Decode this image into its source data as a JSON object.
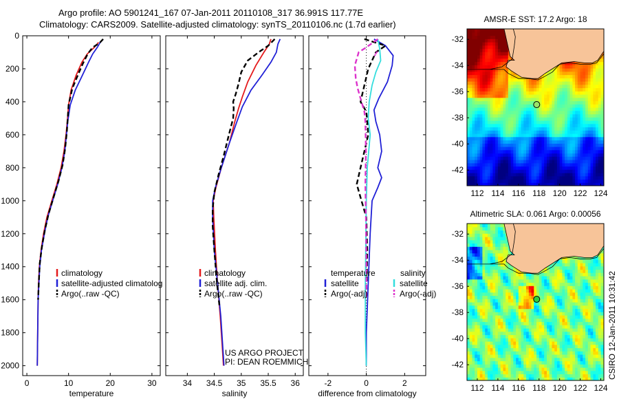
{
  "header": {
    "line1": "Argo profile: AO 5901241_167 07-Jan-2011 20110108_317 36.991S 117.77E",
    "line2": "Climatology: CARS2009. Satellite-adjusted climatology: synTS_20110106.nc (1.7d earlier)"
  },
  "credit": "CSIRO 12-Jan-2011 10:31:42",
  "colors": {
    "red": "#e41a1c",
    "blue": "#1f1fd6",
    "black": "#000000",
    "cyan": "#33dddd",
    "magenta": "#dd33cc",
    "land": "#f7c499"
  },
  "chart_data": [
    {
      "type": "line",
      "id": "temperature",
      "xlabel": "temperature",
      "ylabel": "",
      "xlim": [
        -1,
        32
      ],
      "ylim": [
        2060,
        0
      ],
      "xticks": [
        0,
        10,
        20,
        30
      ],
      "yticks": [
        0,
        200,
        400,
        600,
        800,
        1000,
        1200,
        1400,
        1600,
        1800,
        2000
      ],
      "legend": {
        "placement": "lower-right",
        "entries": [
          "climatology",
          "satellite-adjusted climatolog",
          "Argo(..raw -QC)"
        ]
      },
      "series": [
        {
          "name": "climatology",
          "color": "red",
          "dash": false,
          "points": [
            [
              17.2,
              40
            ],
            [
              16.2,
              70
            ],
            [
              14.5,
              110
            ],
            [
              13.2,
              160
            ],
            [
              11.8,
              240
            ],
            [
              10.6,
              330
            ],
            [
              10,
              420
            ],
            [
              9.7,
              520
            ],
            [
              9.4,
              600
            ],
            [
              8.9,
              700
            ],
            [
              8.2,
              800
            ],
            [
              7.2,
              900
            ],
            [
              6,
              1000
            ],
            [
              4.8,
              1100
            ],
            [
              4,
              1200
            ],
            [
              3.4,
              1300
            ],
            [
              3,
              1400
            ],
            [
              2.8,
              1500
            ],
            [
              2.7,
              1600
            ],
            [
              2.6,
              1800
            ],
            [
              2.5,
              2000
            ]
          ]
        },
        {
          "name": "satellite-adjusted climatolog",
          "color": "blue",
          "dash": false,
          "points": [
            [
              17.6,
              40
            ],
            [
              16.9,
              70
            ],
            [
              15.8,
              110
            ],
            [
              14.8,
              160
            ],
            [
              13.3,
              240
            ],
            [
              11.6,
              330
            ],
            [
              10.4,
              420
            ],
            [
              9.8,
              520
            ],
            [
              9.5,
              600
            ],
            [
              9.1,
              700
            ],
            [
              8.4,
              800
            ],
            [
              7.4,
              900
            ],
            [
              6.2,
              1000
            ],
            [
              5,
              1100
            ],
            [
              4.2,
              1200
            ],
            [
              3.5,
              1300
            ],
            [
              3.1,
              1400
            ],
            [
              2.9,
              1500
            ],
            [
              2.7,
              1600
            ],
            [
              2.6,
              1800
            ],
            [
              2.5,
              2000
            ]
          ]
        },
        {
          "name": "Argo(..raw -QC)",
          "color": "black",
          "dash": true,
          "points": [
            [
              18.3,
              20
            ],
            [
              17.4,
              45
            ],
            [
              15.8,
              70
            ],
            [
              14.6,
              110
            ],
            [
              13.4,
              170
            ],
            [
              12.2,
              240
            ],
            [
              10.9,
              320
            ],
            [
              10,
              420
            ],
            [
              9.8,
              500
            ],
            [
              9.6,
              580
            ],
            [
              9.2,
              680
            ],
            [
              8.6,
              780
            ],
            [
              7.6,
              880
            ],
            [
              6.4,
              980
            ],
            [
              5.2,
              1080
            ],
            [
              4.3,
              1180
            ],
            [
              3.6,
              1280
            ],
            [
              3.1,
              1380
            ],
            [
              2.9,
              1480
            ],
            [
              2.7,
              1600
            ]
          ]
        }
      ]
    },
    {
      "type": "line",
      "id": "salinity",
      "xlabel": "salinity",
      "ylabel": "",
      "xlim": [
        33.6,
        36.15
      ],
      "ylim": [
        2060,
        0
      ],
      "xticks": [
        34,
        34.5,
        35,
        35.5,
        36
      ],
      "legend": {
        "placement": "lower-right",
        "entries": [
          "climatology",
          "satellite adj. clim.",
          "Argo(..raw -QC)"
        ]
      },
      "series": [
        {
          "name": "climatology",
          "color": "red",
          "dash": false,
          "points": [
            [
              35.55,
              20
            ],
            [
              35.52,
              50
            ],
            [
              35.42,
              100
            ],
            [
              35.27,
              180
            ],
            [
              35.12,
              280
            ],
            [
              35.02,
              370
            ],
            [
              34.95,
              440
            ],
            [
              34.88,
              520
            ],
            [
              34.78,
              650
            ],
            [
              34.63,
              800
            ],
            [
              34.53,
              920
            ],
            [
              34.48,
              1000
            ],
            [
              34.49,
              1100
            ],
            [
              34.52,
              1300
            ],
            [
              34.56,
              1500
            ],
            [
              34.61,
              1700
            ],
            [
              34.65,
              1900
            ],
            [
              34.67,
              2000
            ]
          ]
        },
        {
          "name": "satellite adj. clim.",
          "color": "blue",
          "dash": false,
          "points": [
            [
              35.72,
              20
            ],
            [
              35.68,
              50
            ],
            [
              35.65,
              100
            ],
            [
              35.55,
              160
            ],
            [
              35.38,
              240
            ],
            [
              35.18,
              330
            ],
            [
              35.02,
              430
            ],
            [
              34.92,
              520
            ],
            [
              34.78,
              650
            ],
            [
              34.63,
              800
            ],
            [
              34.52,
              920
            ],
            [
              34.47,
              1000
            ],
            [
              34.47,
              1100
            ],
            [
              34.5,
              1300
            ],
            [
              34.56,
              1500
            ],
            [
              34.62,
              1700
            ],
            [
              34.66,
              1900
            ],
            [
              34.68,
              2000
            ]
          ]
        },
        {
          "name": "Argo(..raw -QC)",
          "color": "black",
          "dash": true,
          "points": [
            [
              35.62,
              20
            ],
            [
              35.5,
              60
            ],
            [
              35.32,
              100
            ],
            [
              35.12,
              150
            ],
            [
              35,
              220
            ],
            [
              34.95,
              290
            ],
            [
              34.9,
              350
            ],
            [
              34.85,
              400
            ],
            [
              34.86,
              440
            ],
            [
              34.85,
              500
            ],
            [
              34.77,
              600
            ],
            [
              34.68,
              720
            ],
            [
              34.58,
              840
            ],
            [
              34.5,
              950
            ],
            [
              34.47,
              1050
            ],
            [
              34.47,
              1150
            ],
            [
              34.5,
              1300
            ],
            [
              34.55,
              1500
            ],
            [
              34.6,
              1650
            ]
          ]
        }
      ]
    },
    {
      "type": "line",
      "id": "difference",
      "xlabel": "difference from climatology",
      "ylabel": "",
      "xlim": [
        -3,
        3.1
      ],
      "ylim": [
        2060,
        0
      ],
      "xticks": [
        -2,
        0,
        2
      ],
      "legend": {
        "placement": "lower-left",
        "titles": [
          "temperature",
          "salinity"
        ],
        "entries": [
          "satellite",
          "Argo(-adj)",
          "satellite",
          "Argo(-adj)"
        ]
      },
      "series": [
        {
          "name": "temperature satellite",
          "color": "blue",
          "dash": false,
          "points": [
            [
              0.4,
              20
            ],
            [
              1,
              60
            ],
            [
              1.4,
              120
            ],
            [
              1.35,
              180
            ],
            [
              1.1,
              280
            ],
            [
              0.65,
              380
            ],
            [
              0.4,
              450
            ],
            [
              0.5,
              520
            ],
            [
              0.7,
              600
            ],
            [
              0.8,
              700
            ],
            [
              0.6,
              800
            ],
            [
              0.8,
              860
            ],
            [
              0.6,
              920
            ],
            [
              0.3,
              1000
            ],
            [
              0.2,
              1200
            ],
            [
              0.1,
              1500
            ],
            [
              0,
              1800
            ],
            [
              0,
              2000
            ]
          ]
        },
        {
          "name": "temperature Argo(-adj)",
          "color": "black",
          "dash": true,
          "points": [
            [
              -0.1,
              20
            ],
            [
              1,
              60
            ],
            [
              0.5,
              100
            ],
            [
              0.1,
              200
            ],
            [
              -0.3,
              400
            ],
            [
              0,
              460
            ],
            [
              0.05,
              520
            ],
            [
              0.1,
              600
            ],
            [
              -0.1,
              700
            ],
            [
              -0.3,
              800
            ],
            [
              -0.5,
              900
            ],
            [
              -0.25,
              1000
            ],
            [
              0,
              1100
            ],
            [
              0.05,
              1300
            ],
            [
              0.02,
              1500
            ]
          ]
        },
        {
          "name": "salinity satellite",
          "color": "cyan",
          "dash": false,
          "points": [
            [
              0.6,
              20
            ],
            [
              0.7,
              80
            ],
            [
              0.75,
              150
            ],
            [
              0.5,
              220
            ],
            [
              0.3,
              300
            ],
            [
              0.15,
              400
            ],
            [
              0.1,
              500
            ],
            [
              0.2,
              600
            ],
            [
              0.05,
              800
            ],
            [
              0,
              1000
            ],
            [
              -0.02,
              1200
            ],
            [
              -0.05,
              1500
            ],
            [
              -0.05,
              1800
            ],
            [
              0,
              2000
            ]
          ]
        },
        {
          "name": "salinity Argo(-adj)",
          "color": "magenta",
          "dash": true,
          "points": [
            [
              0.6,
              20
            ],
            [
              0,
              70
            ],
            [
              -0.4,
              100
            ],
            [
              -0.6,
              180
            ],
            [
              -0.55,
              260
            ],
            [
              -0.45,
              320
            ],
            [
              -0.3,
              380
            ],
            [
              -0.1,
              460
            ],
            [
              -0.05,
              520
            ],
            [
              -0.02,
              700
            ],
            [
              -0.05,
              900
            ],
            [
              -0.02,
              1100
            ],
            [
              0,
              1300
            ],
            [
              0.01,
              1600
            ]
          ]
        }
      ],
      "markers": [
        [
          0.55,
          95
        ],
        [
          0.5,
          105
        ],
        [
          0.45,
          115
        ]
      ]
    },
    {
      "type": "heatmap",
      "id": "sst",
      "title": "AMSR-E SST: 17.2  Argo: 18",
      "xlim": [
        111,
        124.3
      ],
      "ylim": [
        -43.2,
        -31.2
      ],
      "xticks": [
        112,
        114,
        116,
        118,
        120,
        122,
        124
      ],
      "yticks": [
        -32,
        -34,
        -36,
        -38,
        -40,
        -42
      ],
      "argo_point": [
        117.77,
        -36.991
      ]
    },
    {
      "type": "heatmap",
      "id": "sla",
      "title": "Altimetric SLA: 0.061  Argo: 0.00056",
      "xlim": [
        111,
        124.3
      ],
      "ylim": [
        -43.2,
        -31.2
      ],
      "xticks": [
        112,
        114,
        116,
        118,
        120,
        122,
        124
      ],
      "yticks": [
        -32,
        -34,
        -36,
        -38,
        -40,
        -42
      ],
      "argo_point": [
        117.77,
        -36.991
      ]
    }
  ],
  "annotation": {
    "line1": "US ARGO PROJECT",
    "line2": "PI: DEAN ROEMMICH"
  }
}
